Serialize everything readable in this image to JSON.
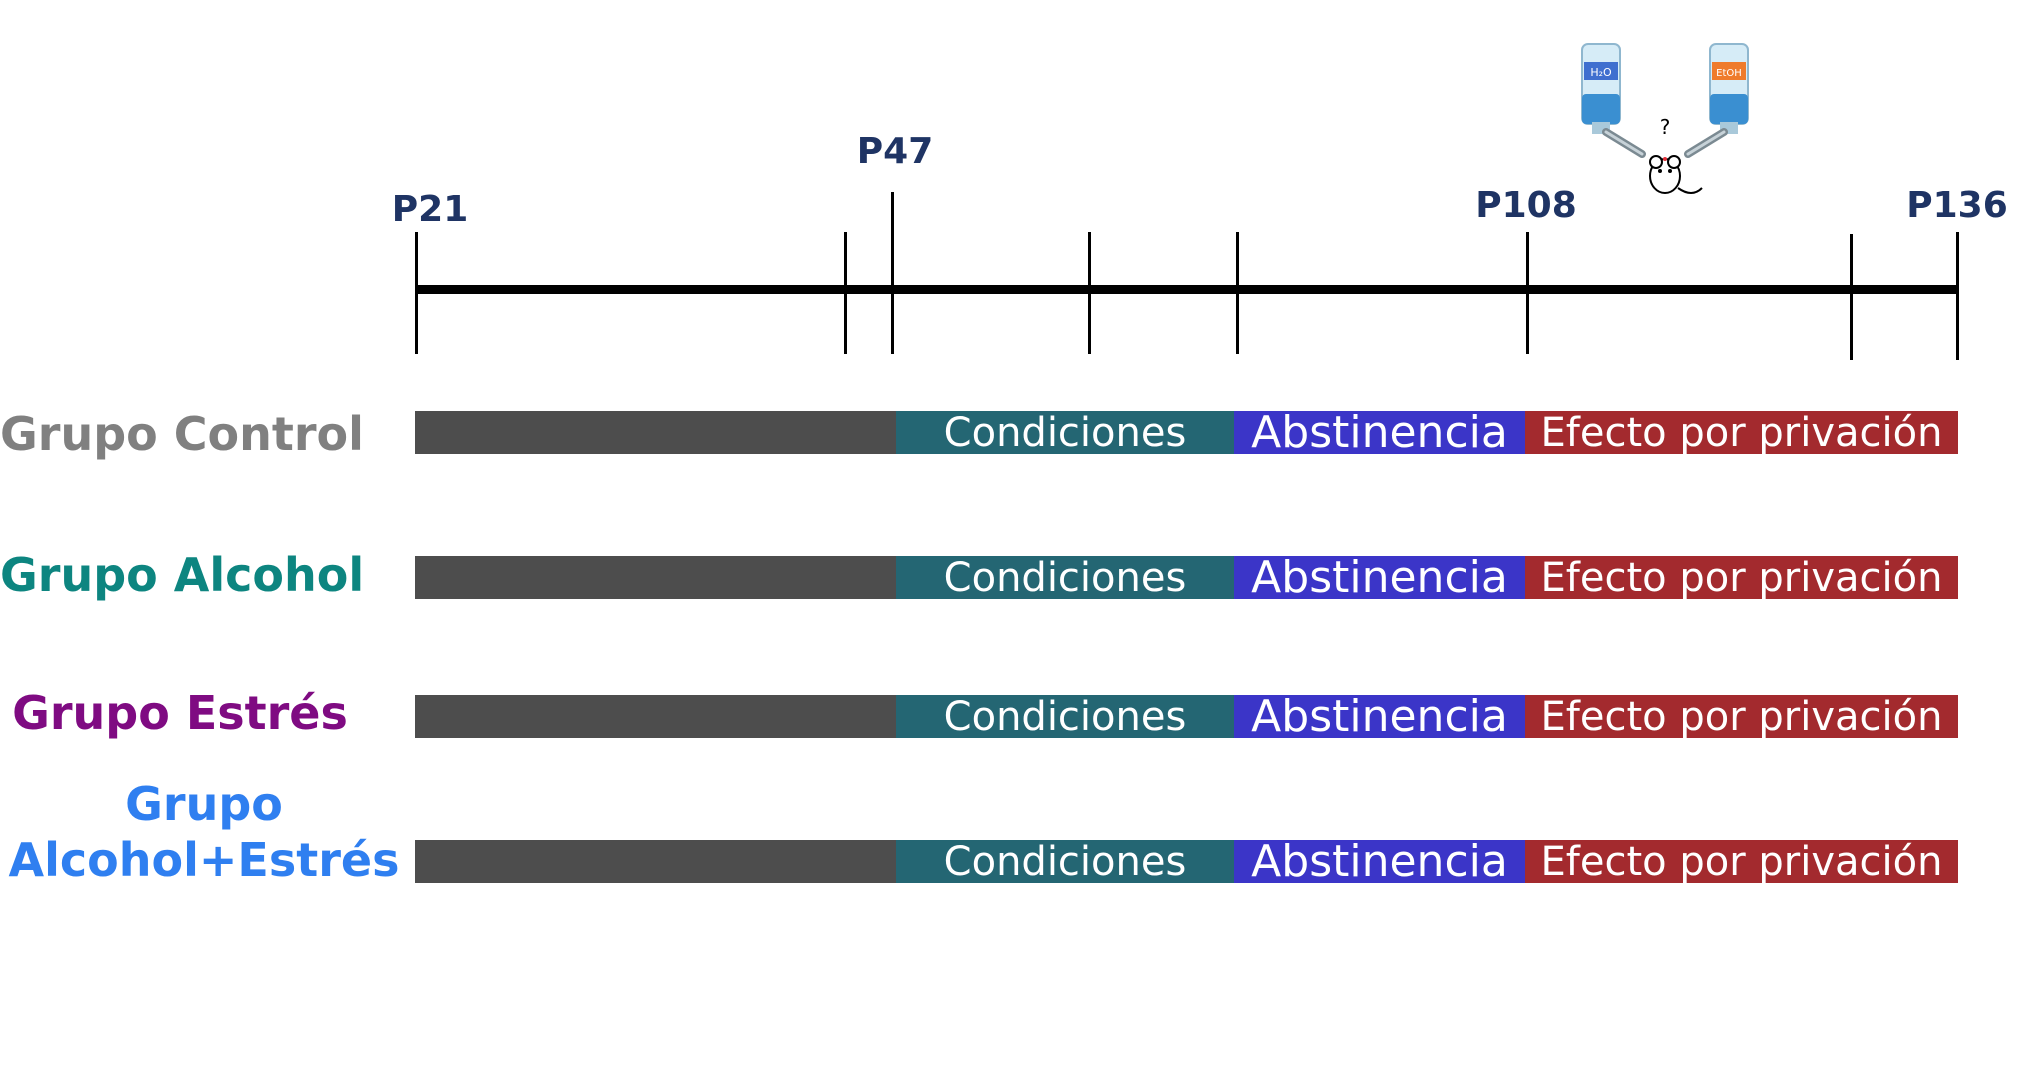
{
  "timeline": {
    "labels": [
      "P21",
      "P47",
      "P108",
      "P136"
    ],
    "label_color": "#1f3464"
  },
  "phases": {
    "condiciones": "Condiciones",
    "abstinencia": "Abstinencia",
    "efecto": "Efecto por privación"
  },
  "colors": {
    "pre": "#4d4d4d",
    "condiciones": "#246673",
    "abstinencia": "#3b35c8",
    "efecto": "#a32a2e"
  },
  "groups": [
    {
      "label": "Grupo Control",
      "color": "#808080"
    },
    {
      "label": "Grupo Alcohol",
      "color": "#0d8580"
    },
    {
      "label": "Grupo Estrés",
      "color": "#7f0b82"
    },
    {
      "label_line1": "Grupo",
      "label_line2": "Alcohol+Estrés",
      "color": "#2f7ff0"
    }
  ],
  "illustration": {
    "bottle_left_label": "H2O",
    "bottle_right_label": "EtOH",
    "question": "?",
    "icons": [
      "water-bottle-icon",
      "ethanol-bottle-icon",
      "mouse-icon"
    ]
  }
}
